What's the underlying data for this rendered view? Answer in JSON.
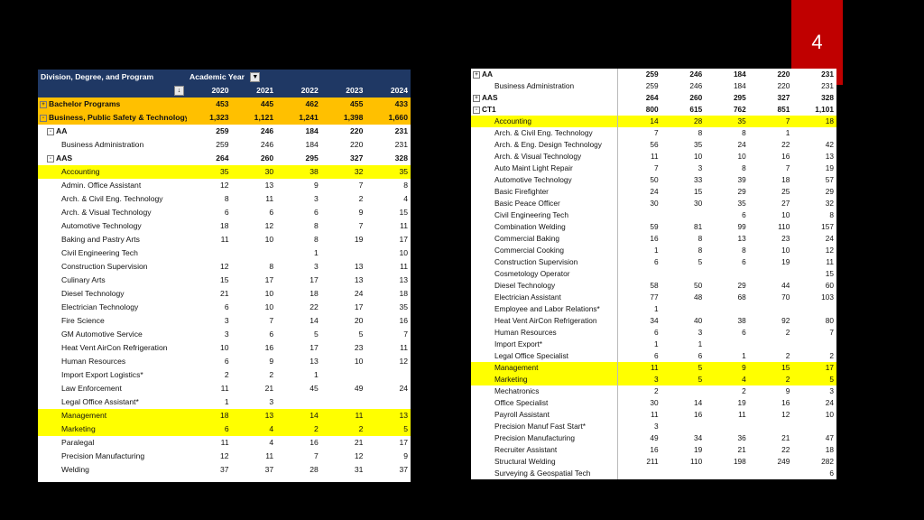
{
  "slide_number": "4",
  "left_table": {
    "header_label": "Division, Degree, and Program",
    "column_header": "Academic Year",
    "filter_glyph": "▼",
    "sort_glyph": "↓",
    "years": [
      "2020",
      "2021",
      "2022",
      "2023",
      "2024"
    ],
    "rows": [
      {
        "toggle": "+",
        "label": "Bachelor Programs",
        "values": [
          "453",
          "445",
          "462",
          "455",
          "433"
        ],
        "style": "orange",
        "level": 1
      },
      {
        "toggle": "-",
        "label": "Business, Public Safety & Technology",
        "values": [
          "1,323",
          "1,121",
          "1,241",
          "1,398",
          "1,660"
        ],
        "style": "orange",
        "level": 1
      },
      {
        "toggle": "-",
        "label": "AA",
        "values": [
          "259",
          "246",
          "184",
          "220",
          "231"
        ],
        "style": "bold",
        "level": 2
      },
      {
        "toggle": "",
        "label": "Business Administration",
        "values": [
          "259",
          "246",
          "184",
          "220",
          "231"
        ],
        "style": "",
        "level": 3
      },
      {
        "toggle": "-",
        "label": "AAS",
        "values": [
          "264",
          "260",
          "295",
          "327",
          "328"
        ],
        "style": "bold",
        "level": 2
      },
      {
        "toggle": "",
        "label": "Accounting",
        "values": [
          "35",
          "30",
          "38",
          "32",
          "35"
        ],
        "style": "yellow",
        "level": 3
      },
      {
        "toggle": "",
        "label": "Admin. Office Assistant",
        "values": [
          "12",
          "13",
          "9",
          "7",
          "8"
        ],
        "style": "",
        "level": 3
      },
      {
        "toggle": "",
        "label": "Arch. & Civil Eng. Technology",
        "values": [
          "8",
          "11",
          "3",
          "2",
          "4"
        ],
        "style": "",
        "level": 3
      },
      {
        "toggle": "",
        "label": "Arch. & Visual Technology",
        "values": [
          "6",
          "6",
          "6",
          "9",
          "15"
        ],
        "style": "",
        "level": 3
      },
      {
        "toggle": "",
        "label": "Automotive Technology",
        "values": [
          "18",
          "12",
          "8",
          "7",
          "11"
        ],
        "style": "",
        "level": 3
      },
      {
        "toggle": "",
        "label": "Baking and Pastry Arts",
        "values": [
          "11",
          "10",
          "8",
          "19",
          "17"
        ],
        "style": "",
        "level": 3
      },
      {
        "toggle": "",
        "label": "Civil Engineering Tech",
        "values": [
          "",
          "",
          "1",
          "",
          "10"
        ],
        "style": "",
        "level": 3
      },
      {
        "toggle": "",
        "label": "Construction Supervision",
        "values": [
          "12",
          "8",
          "3",
          "13",
          "11"
        ],
        "style": "",
        "level": 3
      },
      {
        "toggle": "",
        "label": "Culinary Arts",
        "values": [
          "15",
          "17",
          "17",
          "13",
          "13"
        ],
        "style": "",
        "level": 3
      },
      {
        "toggle": "",
        "label": "Diesel Technology",
        "values": [
          "21",
          "10",
          "18",
          "24",
          "18"
        ],
        "style": "",
        "level": 3
      },
      {
        "toggle": "",
        "label": "Electrician Technology",
        "values": [
          "6",
          "10",
          "22",
          "17",
          "35"
        ],
        "style": "",
        "level": 3
      },
      {
        "toggle": "",
        "label": "Fire Science",
        "values": [
          "3",
          "7",
          "14",
          "20",
          "16"
        ],
        "style": "",
        "level": 3
      },
      {
        "toggle": "",
        "label": "GM Automotive Service",
        "values": [
          "3",
          "6",
          "5",
          "5",
          "7"
        ],
        "style": "",
        "level": 3
      },
      {
        "toggle": "",
        "label": "Heat Vent AirCon Refrigeration",
        "values": [
          "10",
          "16",
          "17",
          "23",
          "11"
        ],
        "style": "",
        "level": 3
      },
      {
        "toggle": "",
        "label": "Human Resources",
        "values": [
          "6",
          "9",
          "13",
          "10",
          "12"
        ],
        "style": "",
        "level": 3
      },
      {
        "toggle": "",
        "label": "Import Export Logistics*",
        "values": [
          "2",
          "2",
          "1",
          "",
          ""
        ],
        "style": "",
        "level": 3
      },
      {
        "toggle": "",
        "label": "Law Enforcement",
        "values": [
          "11",
          "21",
          "45",
          "49",
          "24"
        ],
        "style": "",
        "level": 3
      },
      {
        "toggle": "",
        "label": "Legal Office Assistant*",
        "values": [
          "1",
          "3",
          "",
          "",
          ""
        ],
        "style": "",
        "level": 3
      },
      {
        "toggle": "",
        "label": "Management",
        "values": [
          "18",
          "13",
          "14",
          "11",
          "13"
        ],
        "style": "yellow",
        "level": 3
      },
      {
        "toggle": "",
        "label": "Marketing",
        "values": [
          "6",
          "4",
          "2",
          "2",
          "5"
        ],
        "style": "yellow",
        "level": 3
      },
      {
        "toggle": "",
        "label": "Paralegal",
        "values": [
          "11",
          "4",
          "16",
          "21",
          "17"
        ],
        "style": "",
        "level": 3
      },
      {
        "toggle": "",
        "label": "Precision Manufacturing",
        "values": [
          "12",
          "11",
          "7",
          "12",
          "9"
        ],
        "style": "",
        "level": 3
      },
      {
        "toggle": "",
        "label": "Welding",
        "values": [
          "37",
          "37",
          "28",
          "31",
          "37"
        ],
        "style": "",
        "level": 3
      }
    ]
  },
  "right_table": {
    "rows": [
      {
        "toggle": "+",
        "label": "AA",
        "values": [
          "259",
          "246",
          "184",
          "220",
          "231"
        ],
        "style": "bold",
        "level": 1
      },
      {
        "toggle": "",
        "label": "Business Administration",
        "values": [
          "259",
          "246",
          "184",
          "220",
          "231"
        ],
        "style": "",
        "level": 2
      },
      {
        "toggle": "+",
        "label": "AAS",
        "values": [
          "264",
          "260",
          "295",
          "327",
          "328"
        ],
        "style": "bold",
        "level": 1
      },
      {
        "toggle": "-",
        "label": "CT1",
        "values": [
          "800",
          "615",
          "762",
          "851",
          "1,101"
        ],
        "style": "bold",
        "level": 1
      },
      {
        "toggle": "",
        "label": "Accounting",
        "values": [
          "14",
          "28",
          "35",
          "7",
          "18"
        ],
        "style": "yellow",
        "level": 2
      },
      {
        "toggle": "",
        "label": "Arch. & Civil Eng. Technology",
        "values": [
          "7",
          "8",
          "8",
          "1",
          ""
        ],
        "style": "",
        "level": 2
      },
      {
        "toggle": "",
        "label": "Arch. & Eng. Design Technology",
        "values": [
          "56",
          "35",
          "24",
          "22",
          "42"
        ],
        "style": "",
        "level": 2
      },
      {
        "toggle": "",
        "label": "Arch. & Visual Technology",
        "values": [
          "11",
          "10",
          "10",
          "16",
          "13"
        ],
        "style": "",
        "level": 2
      },
      {
        "toggle": "",
        "label": "Auto Maint Light Repair",
        "values": [
          "7",
          "3",
          "8",
          "7",
          "19"
        ],
        "style": "",
        "level": 2
      },
      {
        "toggle": "",
        "label": "Automotive Technology",
        "values": [
          "50",
          "33",
          "39",
          "18",
          "57"
        ],
        "style": "",
        "level": 2
      },
      {
        "toggle": "",
        "label": "Basic Firefighter",
        "values": [
          "24",
          "15",
          "29",
          "25",
          "29"
        ],
        "style": "",
        "level": 2
      },
      {
        "toggle": "",
        "label": "Basic Peace Officer",
        "values": [
          "30",
          "30",
          "35",
          "27",
          "32"
        ],
        "style": "",
        "level": 2
      },
      {
        "toggle": "",
        "label": "Civil Engineering Tech",
        "values": [
          "",
          "",
          "6",
          "10",
          "8"
        ],
        "style": "",
        "level": 2
      },
      {
        "toggle": "",
        "label": "Combination Welding",
        "values": [
          "59",
          "81",
          "99",
          "110",
          "157"
        ],
        "style": "",
        "level": 2
      },
      {
        "toggle": "",
        "label": "Commercial Baking",
        "values": [
          "16",
          "8",
          "13",
          "23",
          "24"
        ],
        "style": "",
        "level": 2
      },
      {
        "toggle": "",
        "label": "Commercial Cooking",
        "values": [
          "1",
          "8",
          "8",
          "10",
          "12"
        ],
        "style": "",
        "level": 2
      },
      {
        "toggle": "",
        "label": "Construction Supervision",
        "values": [
          "6",
          "5",
          "6",
          "19",
          "11"
        ],
        "style": "",
        "level": 2
      },
      {
        "toggle": "",
        "label": "Cosmetology Operator",
        "values": [
          "",
          "",
          "",
          "",
          "15"
        ],
        "style": "",
        "level": 2
      },
      {
        "toggle": "",
        "label": "Diesel Technology",
        "values": [
          "58",
          "50",
          "29",
          "44",
          "60"
        ],
        "style": "",
        "level": 2
      },
      {
        "toggle": "",
        "label": "Electrician Assistant",
        "values": [
          "77",
          "48",
          "68",
          "70",
          "103"
        ],
        "style": "",
        "level": 2
      },
      {
        "toggle": "",
        "label": "Employee and Labor Relations*",
        "values": [
          "1",
          "",
          "",
          "",
          ""
        ],
        "style": "",
        "level": 2
      },
      {
        "toggle": "",
        "label": "Heat Vent AirCon Refrigeration",
        "values": [
          "34",
          "40",
          "38",
          "92",
          "80"
        ],
        "style": "",
        "level": 2
      },
      {
        "toggle": "",
        "label": "Human Resources",
        "values": [
          "6",
          "3",
          "6",
          "2",
          "7"
        ],
        "style": "",
        "level": 2
      },
      {
        "toggle": "",
        "label": "Import Export*",
        "values": [
          "1",
          "1",
          "",
          "",
          ""
        ],
        "style": "",
        "level": 2
      },
      {
        "toggle": "",
        "label": "Legal Office Specialist",
        "values": [
          "6",
          "6",
          "1",
          "2",
          "2"
        ],
        "style": "",
        "level": 2
      },
      {
        "toggle": "",
        "label": "Management",
        "values": [
          "11",
          "5",
          "9",
          "15",
          "17"
        ],
        "style": "yellow",
        "level": 2
      },
      {
        "toggle": "",
        "label": "Marketing",
        "values": [
          "3",
          "5",
          "4",
          "2",
          "5"
        ],
        "style": "yellow",
        "level": 2
      },
      {
        "toggle": "",
        "label": "Mechatronics",
        "values": [
          "2",
          "",
          "2",
          "9",
          "3"
        ],
        "style": "",
        "level": 2
      },
      {
        "toggle": "",
        "label": "Office Specialist",
        "values": [
          "30",
          "14",
          "19",
          "16",
          "24"
        ],
        "style": "",
        "level": 2
      },
      {
        "toggle": "",
        "label": "Payroll Assistant",
        "values": [
          "11",
          "16",
          "11",
          "12",
          "10"
        ],
        "style": "",
        "level": 2
      },
      {
        "toggle": "",
        "label": "Precision Manuf Fast Start*",
        "values": [
          "3",
          "",
          "",
          "",
          ""
        ],
        "style": "",
        "level": 2
      },
      {
        "toggle": "",
        "label": "Precision Manufacturing",
        "values": [
          "49",
          "34",
          "36",
          "21",
          "47"
        ],
        "style": "",
        "level": 2
      },
      {
        "toggle": "",
        "label": "Recruiter Assistant",
        "values": [
          "16",
          "19",
          "21",
          "22",
          "18"
        ],
        "style": "",
        "level": 2
      },
      {
        "toggle": "",
        "label": "Structural Welding",
        "values": [
          "211",
          "110",
          "198",
          "249",
          "282"
        ],
        "style": "",
        "level": 2
      },
      {
        "toggle": "",
        "label": "Surveying & Geospatial Tech",
        "values": [
          "",
          "",
          "",
          "",
          "6"
        ],
        "style": "",
        "level": 2
      }
    ]
  },
  "colors": {
    "header_bg": "#1f3864",
    "orange_highlight": "#ffc000",
    "yellow_highlight": "#ffff00",
    "slide_badge": "#c00000"
  }
}
